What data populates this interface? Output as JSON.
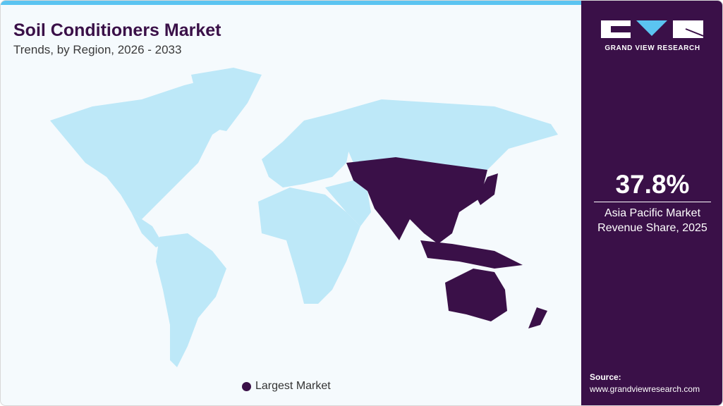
{
  "header": {
    "title": "Soil Conditioners Market",
    "subtitle": "Trends, by Region, 2026 - 2033"
  },
  "brand": {
    "name": "GRAND VIEW RESEARCH"
  },
  "highlight": {
    "value": "37.8%",
    "label_line1": "Asia Pacific Market",
    "label_line2": "Revenue Share, 2025"
  },
  "legend": {
    "label": "Largest Market"
  },
  "source": {
    "label": "Source:",
    "url": "www.grandviewresearch.com"
  },
  "colors": {
    "highlight": "#3a1048",
    "other": "#bde8f8",
    "accent": "#5bc4f1"
  },
  "chart_data": {
    "type": "choropleth map",
    "highlighted_region": "Asia Pacific",
    "highlight_value": "37.8%",
    "legend": [
      "Largest Market"
    ]
  }
}
